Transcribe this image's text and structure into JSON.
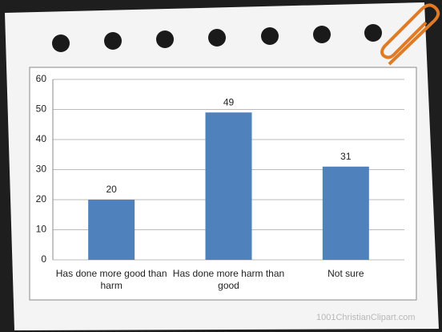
{
  "chart_data": {
    "type": "bar",
    "categories": [
      "Has done more good than harm",
      "Has done more harm than good",
      "Not sure"
    ],
    "values": [
      20,
      49,
      31
    ],
    "color": "#4f81bd",
    "ylim": [
      0,
      60
    ],
    "yticks": [
      0,
      10,
      20,
      30,
      40,
      50,
      60
    ],
    "grid": true
  },
  "watermark": "1001ChristianClipart.com"
}
